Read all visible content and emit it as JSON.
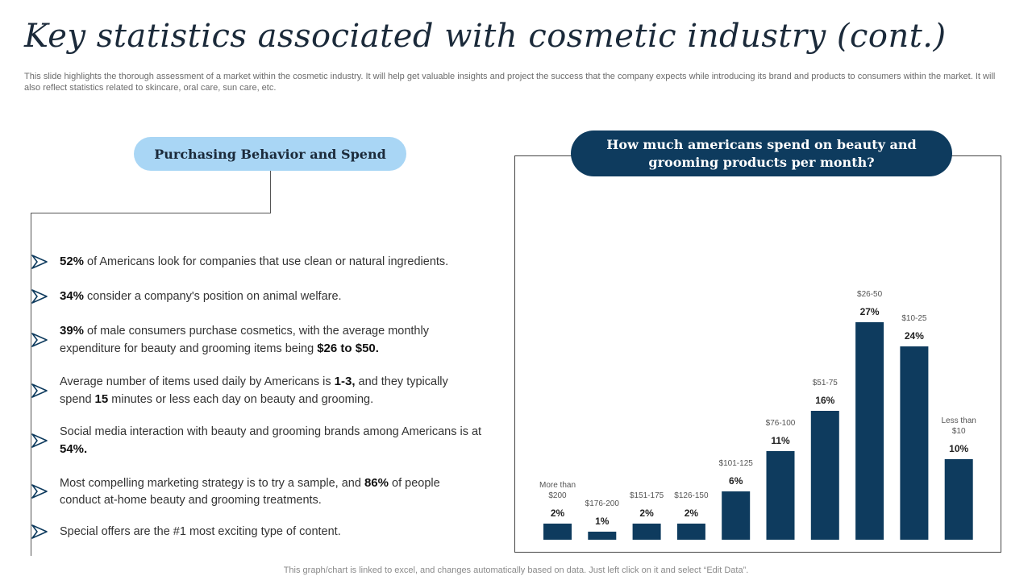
{
  "header": {
    "title": "Key statistics associated with cosmetic industry (cont.)",
    "subtitle": "This slide highlights the thorough assessment of a market within the cosmetic industry. It will help get valuable insights and project the success that the company expects while introducing its brand and products to consumers within the market. It will also reflect statistics related to skincare, oral care, sun care, etc."
  },
  "left_panel": {
    "heading": "Purchasing Behavior and Spend",
    "icon": "arrow-right-icon",
    "bullets": [
      {
        "parts": [
          {
            "b": "52%"
          },
          {
            "t": " of Americans look for companies that use clean or natural ingredients."
          }
        ]
      },
      {
        "parts": [
          {
            "b": "34%"
          },
          {
            "t": " consider a company's position on animal welfare."
          }
        ]
      },
      {
        "parts": [
          {
            "b": "39%"
          },
          {
            "t": " of male consumers purchase cosmetics, with the average monthly expenditure for beauty and grooming items being "
          },
          {
            "b": "$26 to $50."
          }
        ]
      },
      {
        "parts": [
          {
            "t": "Average number of items used daily by Americans is "
          },
          {
            "b": "1-3,"
          },
          {
            "t": " and they typically spend "
          },
          {
            "b": "15"
          },
          {
            "t": " minutes or less each day on beauty and grooming."
          }
        ]
      },
      {
        "parts": [
          {
            "t": "Social media interaction with beauty and grooming brands among Americans is at "
          },
          {
            "b": "54%."
          }
        ]
      },
      {
        "parts": [
          {
            "t": "Most compelling marketing strategy is to try a sample, and "
          },
          {
            "b": "86%"
          },
          {
            "t": " of people conduct at-home beauty and grooming treatments."
          }
        ]
      },
      {
        "parts": [
          {
            "t": "Special offers are the #1 most exciting type of content."
          }
        ]
      }
    ]
  },
  "chart_data": {
    "type": "bar",
    "title": "How much americans spend on beauty and grooming products per month?",
    "categories": [
      "More than $200",
      "$176-200",
      "$151-175",
      "$126-150",
      "$101-125",
      "$76-100",
      "$51-75",
      "$26-50",
      "$10-25",
      "Less than $10"
    ],
    "values": [
      2,
      1,
      2,
      2,
      6,
      11,
      16,
      27,
      24,
      10
    ],
    "value_suffix": "%",
    "ylim": [
      0,
      30
    ],
    "grid": false,
    "legend": "none",
    "bar_color": "#0e3b5e"
  },
  "footer": {
    "note": "This graph/chart is linked to excel,  and changes automatically based on data. Just left click on it and select “Edit Data”."
  }
}
